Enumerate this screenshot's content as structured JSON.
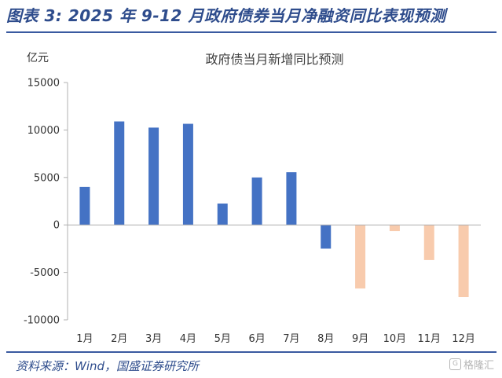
{
  "figure_title": "图表 3: 2025 年 9-12 月政府债券当月净融资同比表现预测",
  "source": "资料来源：Wind，国盛证券研究所",
  "watermark": "格隆汇",
  "watermark_logo": "G",
  "colors": {
    "actual": "#4472c4",
    "forecast": "#f8cbad",
    "title": "#2e4c8c"
  },
  "chart_data": {
    "type": "bar",
    "title": "政府债当月新增同比预测",
    "ylabel": "亿元",
    "xlabel": "",
    "categories": [
      "1月",
      "2月",
      "3月",
      "4月",
      "5月",
      "6月",
      "7月",
      "8月",
      "9月",
      "10月",
      "11月",
      "12月"
    ],
    "values": [
      4000,
      10900,
      10250,
      10650,
      2250,
      5000,
      5550,
      -2500,
      -6700,
      -650,
      -3700,
      -7600
    ],
    "forecast_from_index": 8,
    "ylim": [
      -10000,
      15000
    ],
    "yticks": [
      -10000,
      -5000,
      0,
      5000,
      10000,
      15000
    ],
    "ytick_labels": [
      "-10000",
      "-5000",
      "0",
      "5000",
      "10000",
      "15000"
    ],
    "grid": false,
    "legend": "none"
  }
}
